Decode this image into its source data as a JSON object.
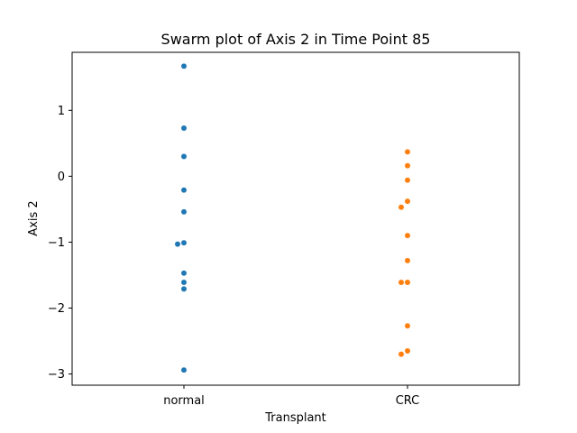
{
  "chart_data": {
    "type": "scatter",
    "title": "Swarm plot of Axis 2 in Time Point 85",
    "xlabel": "Transplant",
    "ylabel": "Axis 2",
    "categories": [
      "normal",
      "CRC"
    ],
    "ylim": [
      -3.17,
      1.88
    ],
    "yticks": [
      -3,
      -2,
      -1,
      0,
      1
    ],
    "ytick_labels": [
      "−3",
      "−2",
      "−1",
      "0",
      "1"
    ],
    "grid": false,
    "series": [
      {
        "category": "normal",
        "color": "#1f77b4",
        "values": [
          1.67,
          0.73,
          0.3,
          -0.21,
          -0.54,
          -1.01,
          -1.03,
          -1.47,
          -1.61,
          -1.71,
          -2.94
        ]
      },
      {
        "category": "CRC",
        "color": "#ff7f0e",
        "values": [
          0.37,
          0.16,
          -0.06,
          -0.38,
          -0.47,
          -0.9,
          -1.28,
          -1.61,
          -1.61,
          -2.27,
          -2.65,
          -2.7
        ]
      }
    ]
  }
}
